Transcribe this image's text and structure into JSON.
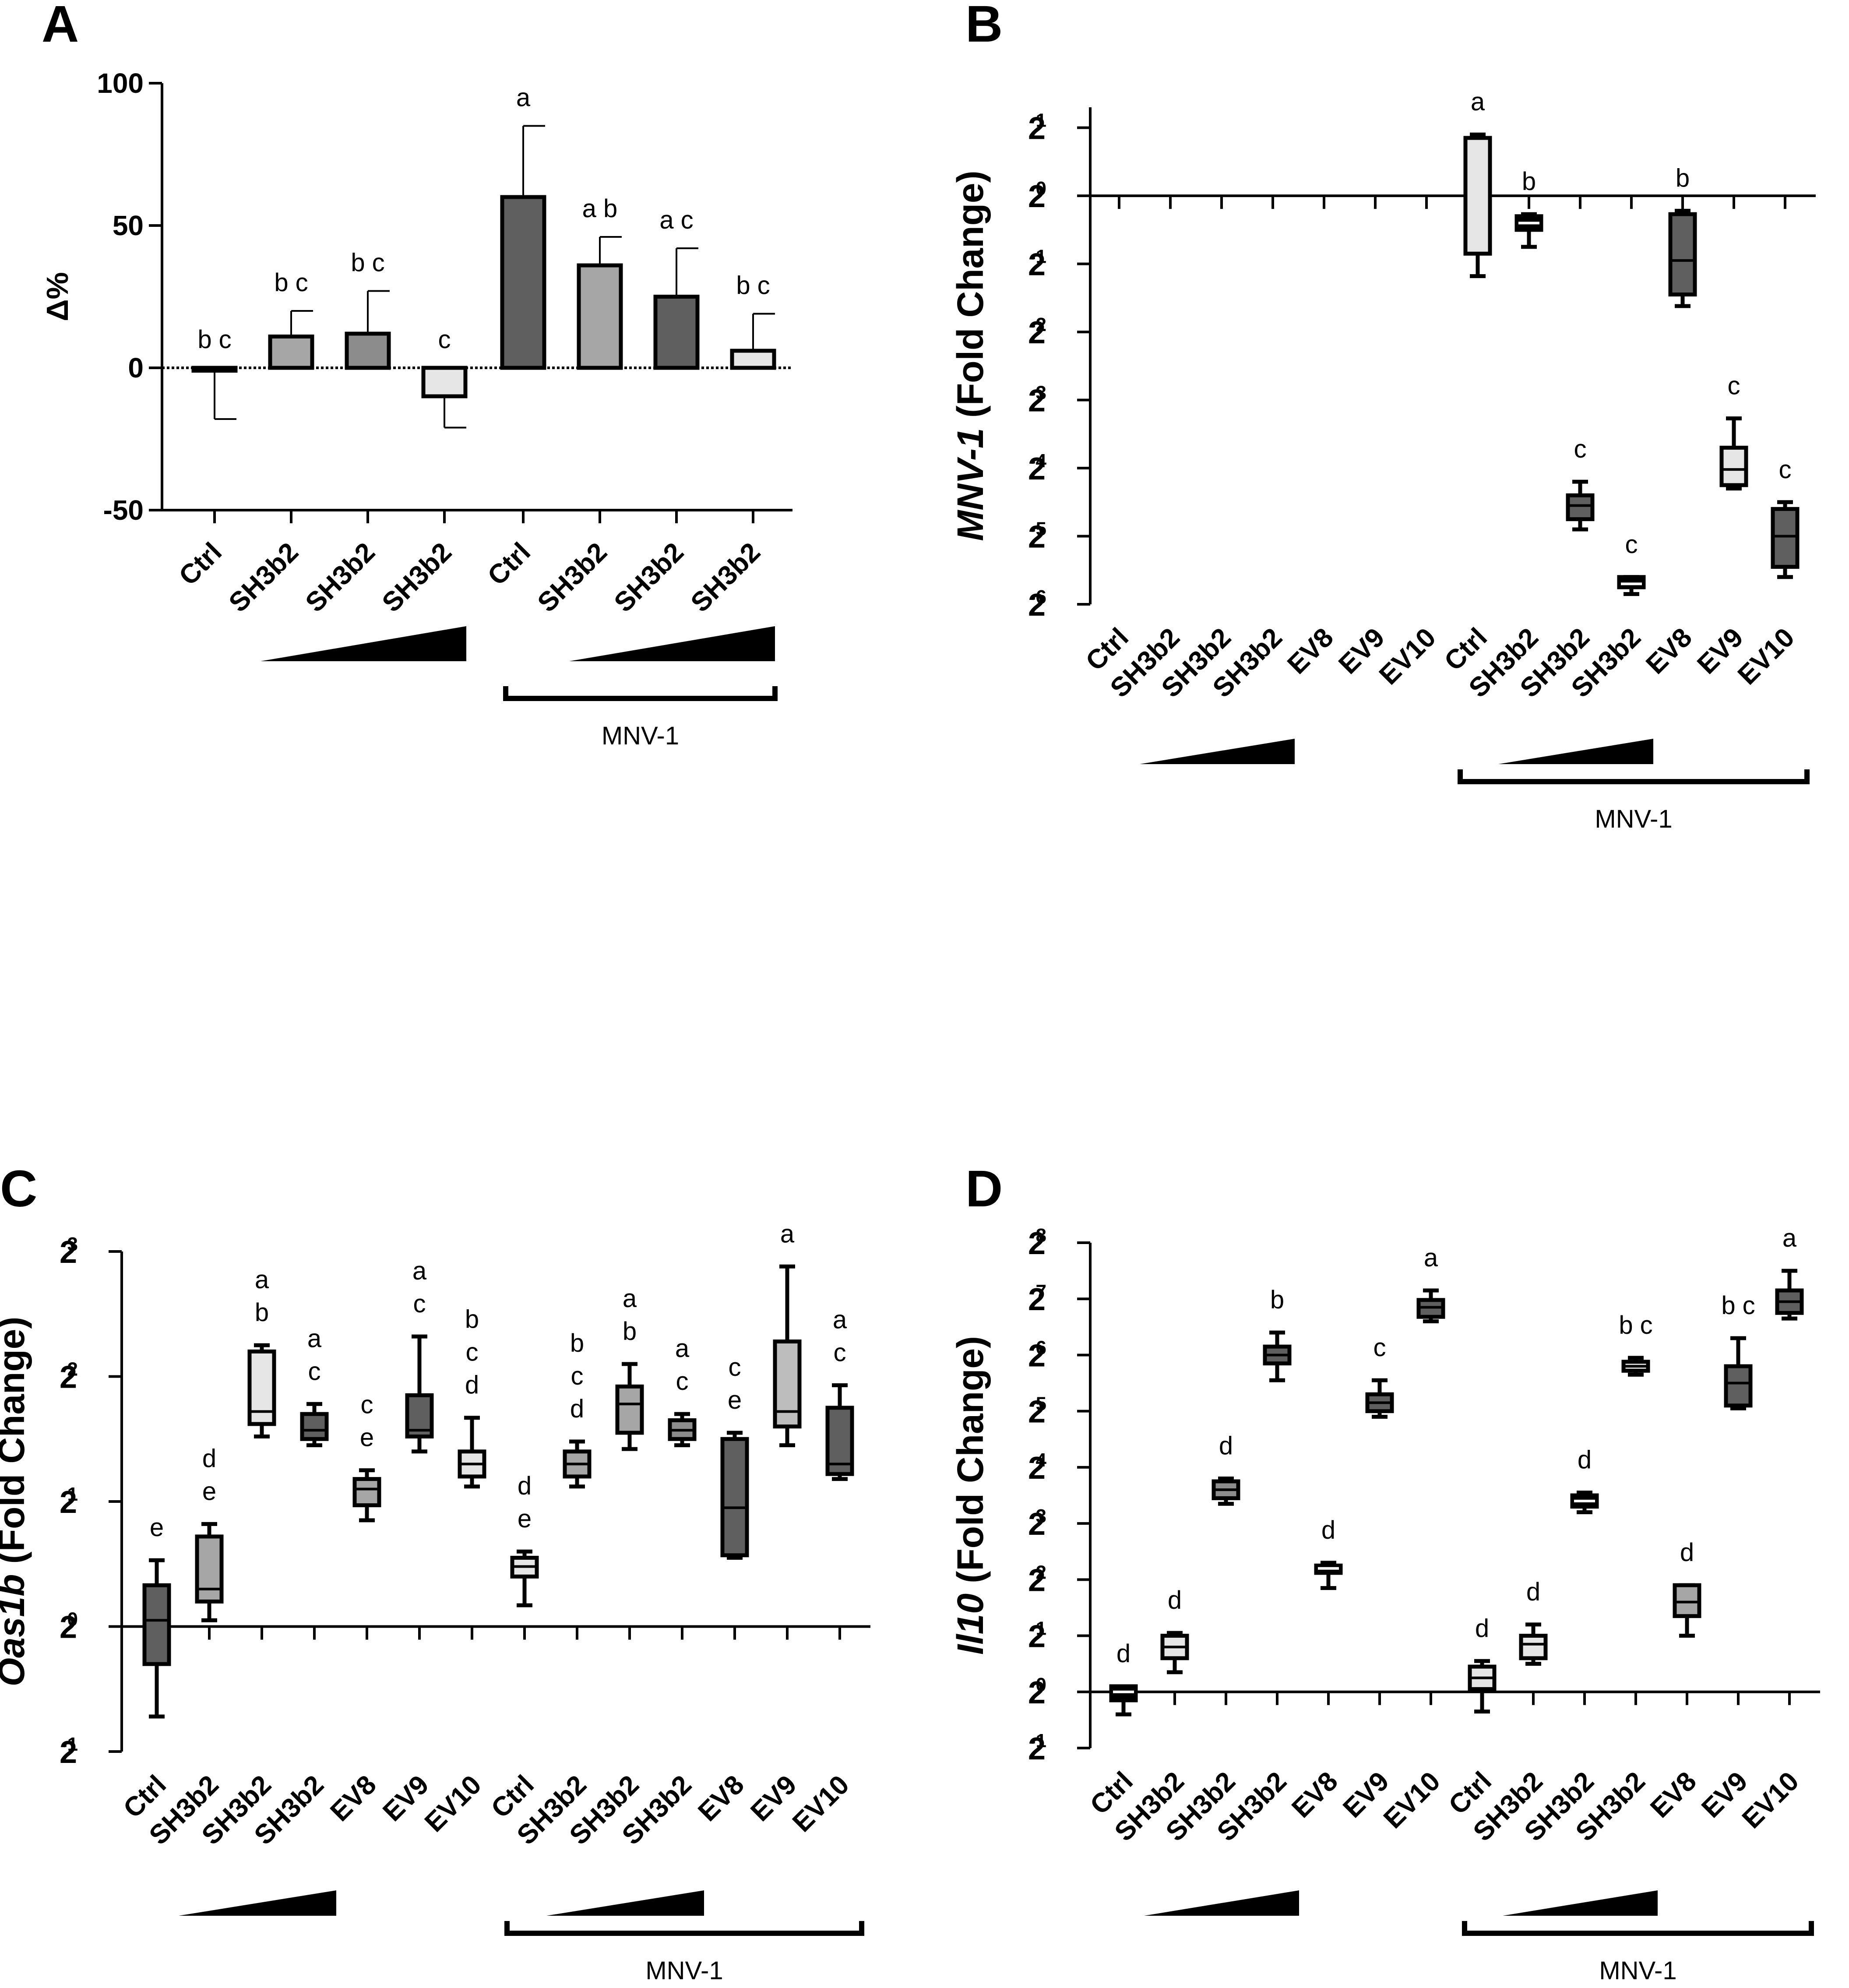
{
  "figure": {
    "panel_letters": [
      "A",
      "B",
      "C",
      "D"
    ],
    "group_label": "MNV-1",
    "colors": {
      "light": "#e6e6e6",
      "light_mid": "#bdbdbd",
      "mid": "#a6a6a6",
      "mid_dark": "#8c8c8c",
      "dark": "#5f5f5f",
      "black": "#000000",
      "axis": "#000000"
    }
  },
  "chart_data": [
    {
      "panel": "A",
      "type": "bar",
      "title": "",
      "ylabel": "Δ%",
      "xlabel": "",
      "ylim": [
        -50,
        100
      ],
      "yticks": [
        -50,
        0,
        50,
        100
      ],
      "categories": [
        "Ctrl",
        "SH3b2",
        "SH3b2",
        "SH3b2",
        "Ctrl",
        "SH3b2",
        "SH3b2",
        "SH3b2"
      ],
      "values": [
        -1,
        11,
        12,
        -10,
        60,
        36,
        25,
        6
      ],
      "errors": [
        17,
        9,
        15,
        11,
        25,
        10,
        17,
        13
      ],
      "fills": [
        "light",
        "mid",
        "mid_dark",
        "light",
        "dark",
        "mid",
        "dark",
        "light"
      ],
      "significance": [
        "b c",
        "b c",
        "b c",
        "c",
        "a",
        "a b",
        "a c",
        "b c"
      ],
      "dose_ramps": [
        [
          1,
          3
        ],
        [
          5,
          7
        ]
      ],
      "group_bracket": {
        "from": 4,
        "to": 7,
        "label": "MNV-1"
      }
    },
    {
      "panel": "B",
      "type": "box",
      "ylabel_italic": "MNV-1",
      "ylabel_rest": " (Fold Change)",
      "yscale": "log2",
      "ylim_exp": [
        -6,
        1.3
      ],
      "ytick_exps": [
        1,
        0,
        -1,
        -2,
        -3,
        -4,
        -5,
        -6
      ],
      "baseline_exp": 0,
      "categories": [
        "Ctrl",
        "SH3b2",
        "SH3b2",
        "SH3b2",
        "EV8",
        "EV9",
        "EV10",
        "Ctrl",
        "SH3b2",
        "SH3b2",
        "SH3b2",
        "EV8",
        "EV9",
        "EV10"
      ],
      "boxes": [
        null,
        null,
        null,
        null,
        null,
        null,
        null,
        {
          "min": -1.18,
          "q1": -0.85,
          "median": -0.85,
          "q3": 0.85,
          "max": 0.9,
          "fill": "light",
          "sig": "a"
        },
        {
          "min": -0.75,
          "q1": -0.5,
          "median": -0.4,
          "q3": -0.3,
          "max": -0.27,
          "fill": "black",
          "sig": "b"
        },
        {
          "min": -4.9,
          "q1": -4.75,
          "median": -4.55,
          "q3": -4.4,
          "max": -4.2,
          "fill": "dark",
          "sig": "c"
        },
        {
          "min": -5.85,
          "q1": -5.75,
          "median": -5.7,
          "q3": -5.6,
          "max": -5.6,
          "fill": "black",
          "sig": "c"
        },
        {
          "min": -1.62,
          "q1": -1.45,
          "median": -0.95,
          "q3": -0.27,
          "max": -0.22,
          "fill": "dark",
          "sig": "b"
        },
        {
          "min": -4.3,
          "q1": -4.25,
          "median": -4.02,
          "q3": -3.7,
          "max": -3.27,
          "fill": "light",
          "sig": "c"
        },
        {
          "min": -5.6,
          "q1": -5.45,
          "median": -5.0,
          "q3": -4.6,
          "max": -4.5,
          "fill": "dark",
          "sig": "c"
        }
      ],
      "dose_ramps": [
        [
          1,
          3
        ],
        [
          8,
          10
        ]
      ],
      "group_bracket": {
        "from": 7,
        "to": 13,
        "label": "MNV-1"
      }
    },
    {
      "panel": "C",
      "type": "box",
      "ylabel_italic": "Oas1b",
      "ylabel_rest": " (Fold Change)",
      "yscale": "log2",
      "ylim_exp": [
        -1,
        3
      ],
      "ytick_exps": [
        3,
        2,
        1,
        0,
        -1
      ],
      "baseline_exp": 0,
      "categories": [
        "Ctrl",
        "SH3b2",
        "SH3b2",
        "SH3b2",
        "EV8",
        "EV9",
        "EV10",
        "Ctrl",
        "SH3b2",
        "SH3b2",
        "SH3b2",
        "EV8",
        "EV9",
        "EV10"
      ],
      "boxes": [
        {
          "min": -0.72,
          "q1": -0.3,
          "median": 0.05,
          "q3": 0.33,
          "max": 0.53,
          "fill": "dark",
          "sig": "e"
        },
        {
          "min": 0.05,
          "q1": 0.2,
          "median": 0.3,
          "q3": 0.72,
          "max": 0.82,
          "fill": "mid",
          "sig": "d e"
        },
        {
          "min": 1.52,
          "q1": 1.62,
          "median": 1.72,
          "q3": 2.2,
          "max": 2.25,
          "fill": "light",
          "sig": "a b"
        },
        {
          "min": 1.45,
          "q1": 1.5,
          "median": 1.57,
          "q3": 1.7,
          "max": 1.78,
          "fill": "dark",
          "sig": "a c"
        },
        {
          "min": 0.85,
          "q1": 0.97,
          "median": 1.1,
          "q3": 1.18,
          "max": 1.25,
          "fill": "mid",
          "sig": "c e"
        },
        {
          "min": 1.4,
          "q1": 1.52,
          "median": 1.57,
          "q3": 1.85,
          "max": 2.32,
          "fill": "dark",
          "sig": "a c"
        },
        {
          "min": 1.12,
          "q1": 1.2,
          "median": 1.3,
          "q3": 1.4,
          "max": 1.67,
          "fill": "light",
          "sig": "b c d"
        },
        {
          "min": 0.17,
          "q1": 0.4,
          "median": 0.48,
          "q3": 0.55,
          "max": 0.6,
          "fill": "light",
          "sig": "d e"
        },
        {
          "min": 1.12,
          "q1": 1.2,
          "median": 1.3,
          "q3": 1.4,
          "max": 1.48,
          "fill": "mid",
          "sig": "b c d"
        },
        {
          "min": 1.42,
          "q1": 1.55,
          "median": 1.78,
          "q3": 1.92,
          "max": 2.1,
          "fill": "mid",
          "sig": "a b"
        },
        {
          "min": 1.45,
          "q1": 1.5,
          "median": 1.57,
          "q3": 1.65,
          "max": 1.7,
          "fill": "mid_dark",
          "sig": "a c"
        },
        {
          "min": 0.55,
          "q1": 0.57,
          "median": 0.95,
          "q3": 1.5,
          "max": 1.55,
          "fill": "dark",
          "sig": "c e"
        },
        {
          "min": 1.45,
          "q1": 1.6,
          "median": 1.72,
          "q3": 2.28,
          "max": 2.88,
          "fill": "light_mid",
          "sig": "a"
        },
        {
          "min": 1.18,
          "q1": 1.22,
          "median": 1.3,
          "q3": 1.75,
          "max": 1.93,
          "fill": "dark",
          "sig": "a c"
        }
      ],
      "dose_ramps": [
        [
          1,
          3
        ],
        [
          8,
          10
        ]
      ],
      "group_bracket": {
        "from": 7,
        "to": 13,
        "label": "MNV-1"
      }
    },
    {
      "panel": "D",
      "type": "box",
      "ylabel_italic": "Il10",
      "ylabel_rest": " (Fold Change)",
      "yscale": "log2",
      "ylim_exp": [
        -1,
        8
      ],
      "ytick_exps": [
        8,
        7,
        6,
        5,
        4,
        3,
        2,
        1,
        0,
        -1
      ],
      "baseline_exp": 0,
      "categories": [
        "Ctrl",
        "SH3b2",
        "SH3b2",
        "SH3b2",
        "EV8",
        "EV9",
        "EV10",
        "Ctrl",
        "SH3b2",
        "SH3b2",
        "SH3b2",
        "EV8",
        "EV9",
        "EV10"
      ],
      "boxes": [
        {
          "min": -0.4,
          "q1": -0.15,
          "median": 0.0,
          "q3": 0.1,
          "max": 0.1,
          "fill": "black",
          "sig": "d"
        },
        {
          "min": 0.35,
          "q1": 0.6,
          "median": 0.8,
          "q3": 1.0,
          "max": 1.05,
          "fill": "light",
          "sig": "d"
        },
        {
          "min": 3.35,
          "q1": 3.45,
          "median": 3.6,
          "q3": 3.75,
          "max": 3.8,
          "fill": "mid_dark",
          "sig": "d"
        },
        {
          "min": 5.55,
          "q1": 5.85,
          "median": 6.0,
          "q3": 6.15,
          "max": 6.4,
          "fill": "dark",
          "sig": "b"
        },
        {
          "min": 1.85,
          "q1": 2.12,
          "median": 2.2,
          "q3": 2.25,
          "max": 2.3,
          "fill": "black",
          "sig": "d"
        },
        {
          "min": 4.9,
          "q1": 5.0,
          "median": 5.15,
          "q3": 5.3,
          "max": 5.55,
          "fill": "dark",
          "sig": "c"
        },
        {
          "min": 6.6,
          "q1": 6.68,
          "median": 6.85,
          "q3": 6.98,
          "max": 7.15,
          "fill": "dark",
          "sig": "a"
        },
        {
          "min": -0.35,
          "q1": 0.05,
          "median": 0.25,
          "q3": 0.45,
          "max": 0.55,
          "fill": "light",
          "sig": "d"
        },
        {
          "min": 0.5,
          "q1": 0.6,
          "median": 0.85,
          "q3": 1.0,
          "max": 1.2,
          "fill": "light",
          "sig": "d"
        },
        {
          "min": 3.2,
          "q1": 3.3,
          "median": 3.4,
          "q3": 3.5,
          "max": 3.55,
          "fill": "black",
          "sig": "d"
        },
        {
          "min": 5.65,
          "q1": 5.72,
          "median": 5.8,
          "q3": 5.88,
          "max": 5.95,
          "fill": "light",
          "sig": "b c"
        },
        {
          "min": 1.0,
          "q1": 1.35,
          "median": 1.6,
          "q3": 1.9,
          "max": 1.9,
          "fill": "mid",
          "sig": "d"
        },
        {
          "min": 5.05,
          "q1": 5.1,
          "median": 5.5,
          "q3": 5.8,
          "max": 6.3,
          "fill": "dark",
          "sig": "b c"
        },
        {
          "min": 6.65,
          "q1": 6.75,
          "median": 6.95,
          "q3": 7.15,
          "max": 7.5,
          "fill": "dark",
          "sig": "a"
        }
      ],
      "dose_ramps": [
        [
          1,
          3
        ],
        [
          8,
          10
        ]
      ],
      "group_bracket": {
        "from": 7,
        "to": 13,
        "label": "MNV-1"
      }
    }
  ]
}
